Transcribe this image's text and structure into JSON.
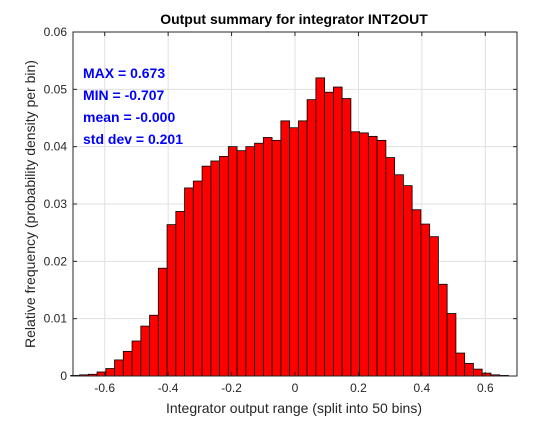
{
  "chart_data": {
    "type": "bar",
    "title": "Output summary for integrator INT2OUT",
    "xlabel": "Integrator output range (split into 50 bins)",
    "ylabel": "Relative frequency (probability density per bin)",
    "xlim": [
      -0.7,
      0.7
    ],
    "ylim": [
      0,
      0.06
    ],
    "xticks": [
      -0.6,
      -0.4,
      -0.2,
      0,
      0.2,
      0.4,
      0.6
    ],
    "xtick_labels": [
      "-0.6",
      "-0.4",
      "-0.2",
      "0",
      "0.2",
      "0.4",
      "0.6"
    ],
    "yticks": [
      0,
      0.01,
      0.02,
      0.03,
      0.04,
      0.05,
      0.06
    ],
    "ytick_labels": [
      "0",
      "0.01",
      "0.02",
      "0.03",
      "0.04",
      "0.05",
      "0.06"
    ],
    "grid": true,
    "bar_color": "#ff0000",
    "bar_edge_color": "#000000",
    "bin_start": -0.707,
    "bin_end": 0.673,
    "bins": 50,
    "values": [
      0.0001,
      0.0002,
      0.0003,
      0.0007,
      0.0013,
      0.0028,
      0.0043,
      0.0061,
      0.0087,
      0.0106,
      0.0188,
      0.0264,
      0.0287,
      0.0328,
      0.034,
      0.0366,
      0.0375,
      0.0383,
      0.04,
      0.0393,
      0.04,
      0.0406,
      0.0416,
      0.0411,
      0.0445,
      0.0433,
      0.0445,
      0.0482,
      0.052,
      0.0495,
      0.0504,
      0.0484,
      0.0426,
      0.0424,
      0.0418,
      0.0411,
      0.0381,
      0.0351,
      0.0332,
      0.029,
      0.0265,
      0.0243,
      0.016,
      0.0109,
      0.004,
      0.0022,
      0.0012,
      0.0005,
      0.0002,
      0.0001
    ],
    "annotations": [
      "MAX = 0.673",
      "MIN = -0.707",
      "mean = -0.000",
      "std dev = 0.201"
    ],
    "annotation_color": "#0000ff"
  }
}
